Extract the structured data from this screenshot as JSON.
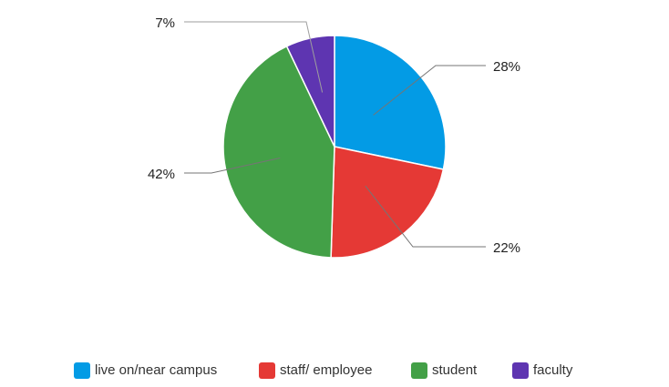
{
  "chart_data": {
    "type": "pie",
    "title": "",
    "categories": [
      "live on/near campus",
      "staff/ employee",
      "student",
      "faculty"
    ],
    "values": [
      28,
      22,
      42,
      7
    ],
    "data_labels": [
      "28%",
      "22%",
      "42%",
      "7%"
    ],
    "colors": [
      "#039be5",
      "#e53935",
      "#43a047",
      "#5e35b1"
    ],
    "legend_position": "bottom",
    "start_angle": "top",
    "direction": "clockwise"
  },
  "legend": {
    "items": [
      {
        "label": "live on/near campus",
        "color": "#039be5"
      },
      {
        "label": "staff/ employee",
        "color": "#e53935"
      },
      {
        "label": "student",
        "color": "#43a047"
      },
      {
        "label": "faculty",
        "color": "#5e35b1"
      }
    ]
  }
}
